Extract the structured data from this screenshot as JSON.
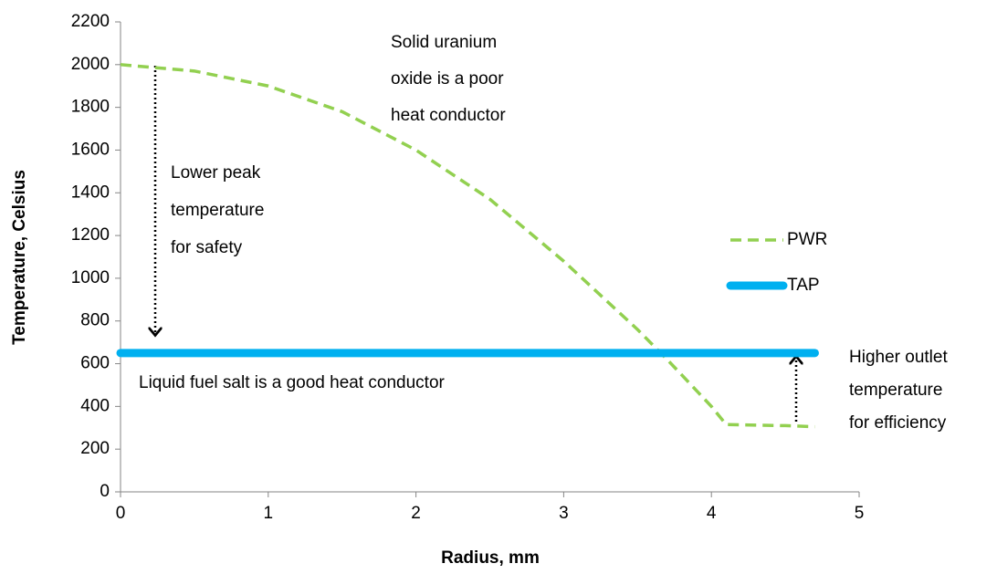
{
  "chart_data": {
    "type": "line",
    "xlabel": "Radius, mm",
    "ylabel": "Temperature, Celsius",
    "xlim": [
      0,
      5
    ],
    "xticks": [
      0,
      1,
      2,
      3,
      4,
      5
    ],
    "ylim": [
      0,
      2200
    ],
    "yticks": [
      0,
      200,
      400,
      600,
      800,
      1000,
      1200,
      1400,
      1600,
      1800,
      2000,
      2200
    ],
    "grid": false,
    "legend": "right",
    "series": [
      {
        "name": "PWR",
        "color": "#92d050",
        "dash": true,
        "x": [
          0,
          0.5,
          1,
          1.5,
          2,
          2.5,
          3,
          3.5,
          3.7,
          4,
          4.1,
          4.5,
          4.7
        ],
        "values": [
          2000,
          1970,
          1900,
          1780,
          1600,
          1370,
          1080,
          760,
          620,
          400,
          315,
          310,
          305
        ]
      },
      {
        "name": "TAP",
        "color": "#00b0f0",
        "dash": false,
        "x": [
          0,
          4.7
        ],
        "values": [
          650,
          650
        ]
      }
    ],
    "annotations": [
      [
        "Solid uranium",
        "oxide is a poor",
        "heat conductor"
      ],
      [
        "Lower peak",
        "temperature",
        "for safety"
      ],
      [
        "Liquid fuel salt is a good heat conductor"
      ],
      [
        "Higher outlet",
        "temperature",
        "for efficiency"
      ]
    ]
  }
}
